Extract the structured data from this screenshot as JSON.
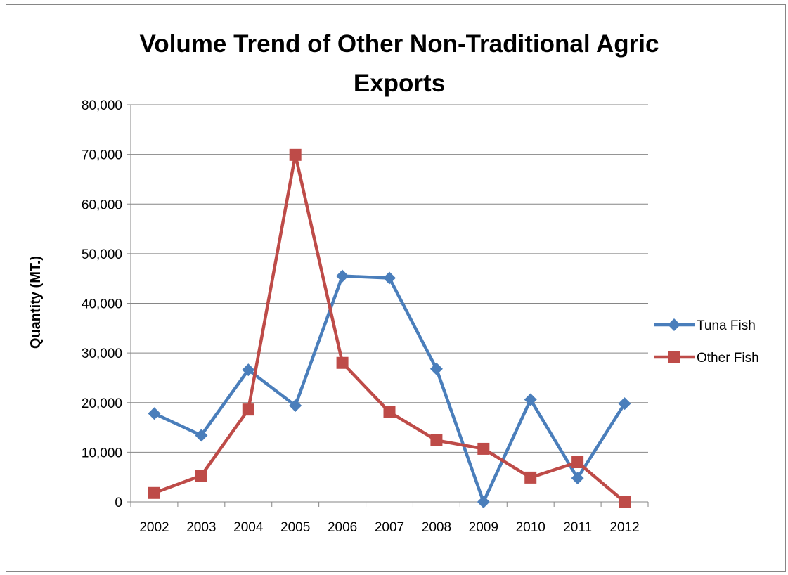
{
  "chart_data": {
    "type": "line",
    "title_line1": "Volume Trend of Other Non-Traditional Agric",
    "title_line2": "Exports",
    "xlabel": "",
    "ylabel": "Quantity (MT.)",
    "ylim": [
      0,
      80000
    ],
    "y_ticks": [
      "0",
      "10,000",
      "20,000",
      "30,000",
      "40,000",
      "50,000",
      "60,000",
      "70,000",
      "80,000"
    ],
    "grid": "horizontal",
    "legend_position": "right",
    "categories": [
      "2002",
      "2003",
      "2004",
      "2005",
      "2006",
      "2007",
      "2008",
      "2009",
      "2010",
      "2011",
      "2012"
    ],
    "series": [
      {
        "name": "Tuna Fish",
        "color": "#4a7ebb",
        "marker": "diamond",
        "values": [
          17800,
          13400,
          26600,
          19400,
          45500,
          45100,
          26800,
          0,
          20600,
          4800,
          19800
        ]
      },
      {
        "name": "Other Fish",
        "color": "#be4b48",
        "marker": "square",
        "values": [
          1800,
          5300,
          18600,
          69900,
          28000,
          18100,
          12400,
          10700,
          4900,
          8000,
          0
        ]
      }
    ]
  }
}
